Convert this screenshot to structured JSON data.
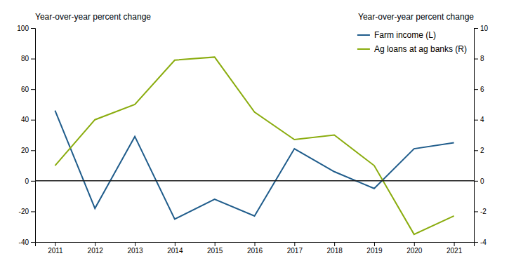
{
  "chart_data": {
    "type": "line",
    "x": [
      2011,
      2012,
      2013,
      2014,
      2015,
      2016,
      2017,
      2018,
      2019,
      2020,
      2021
    ],
    "xlim": [
      2010.5,
      2021.5
    ],
    "xticks": [
      2011,
      2012,
      2013,
      2014,
      2015,
      2016,
      2017,
      2018,
      2019,
      2020,
      2021
    ],
    "series": [
      {
        "name": "Farm income (L)",
        "color": "#1f5c8b",
        "values": [
          46,
          -18,
          29,
          -25,
          -12,
          -23,
          21,
          6,
          -5,
          21,
          25
        ]
      },
      {
        "name": "Ag loans at ag banks (R)",
        "color": "#8aac0e",
        "axis": "y2",
        "values": [
          1,
          4,
          5,
          7.9,
          8.1,
          4.5,
          2.7,
          3,
          1,
          -3.5,
          -2.3
        ]
      }
    ],
    "ylabel": "Year-over-year percent change",
    "y2label": "Year-over-year percent change",
    "ylim": [
      -40,
      100
    ],
    "yticks": [
      -40,
      -20,
      0,
      20,
      40,
      60,
      80,
      100
    ],
    "y2lim": [
      -4,
      10
    ],
    "y2ticks": [
      -4,
      -2,
      0,
      2,
      4,
      6,
      8,
      10
    ],
    "hline": {
      "value": 0,
      "color": "#1a1a1a"
    },
    "grid": false,
    "legend": "upper-right"
  }
}
